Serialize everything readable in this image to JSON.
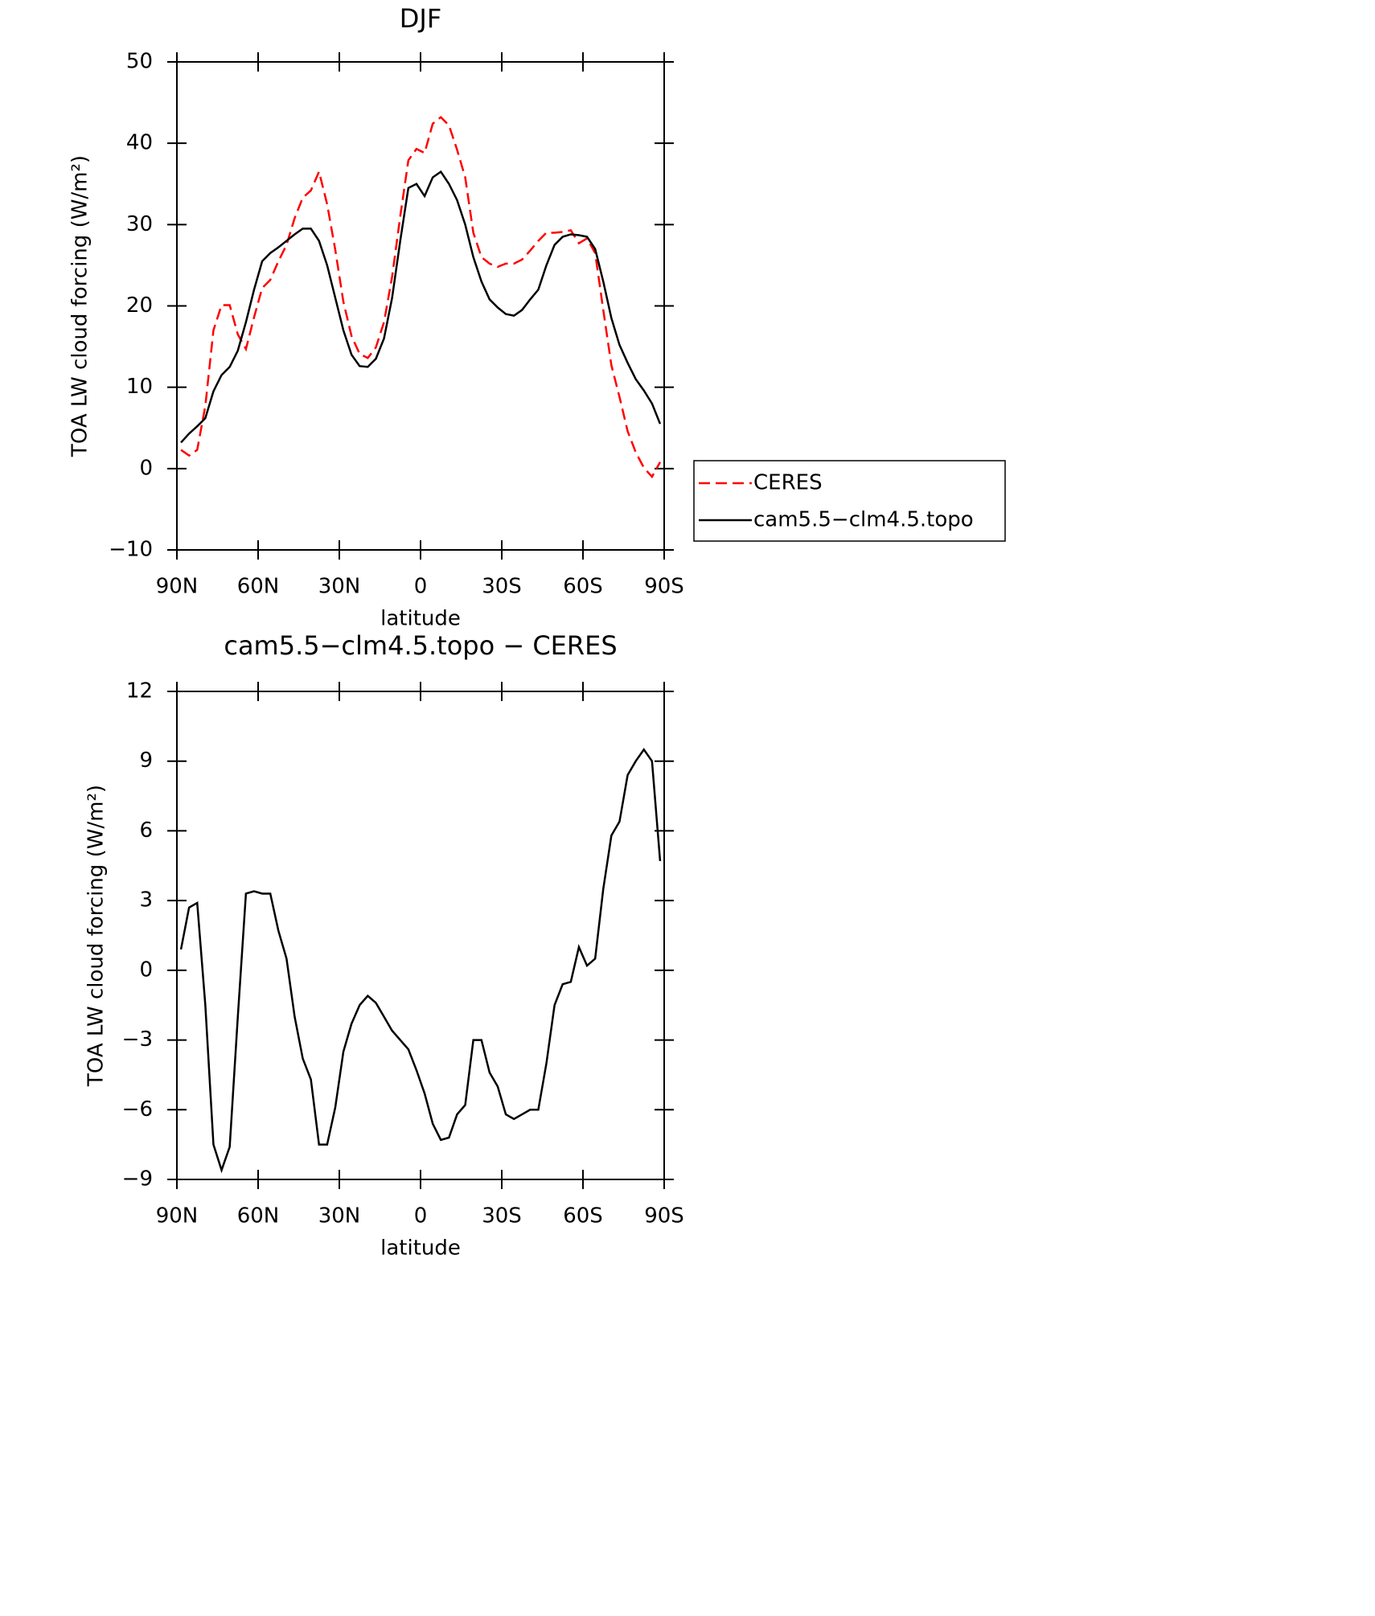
{
  "chart_data": [
    {
      "type": "line",
      "title": "DJF",
      "xlabel": "latitude",
      "ylabel": "TOA LW cloud forcing (W/m²)",
      "x": [
        88.5,
        85.5,
        82.5,
        79.5,
        76.5,
        73.5,
        70.5,
        67.5,
        64.5,
        61.5,
        58.5,
        55.5,
        52.5,
        49.5,
        46.5,
        43.5,
        40.5,
        37.5,
        34.5,
        31.5,
        28.5,
        25.5,
        22.5,
        19.5,
        16.5,
        13.5,
        10.5,
        7.5,
        4.5,
        1.5,
        -1.5,
        -4.5,
        -7.5,
        -10.5,
        -13.5,
        -16.5,
        -19.5,
        -22.5,
        -25.5,
        -28.5,
        -31.5,
        -34.5,
        -37.5,
        -40.5,
        -43.5,
        -46.5,
        -49.5,
        -52.5,
        -55.5,
        -58.5,
        -61.5,
        -64.5,
        -67.5,
        -70.5,
        -73.5,
        -76.5,
        -79.5,
        -82.5,
        -85.5,
        -88.5
      ],
      "series": [
        {
          "name": "CERES",
          "color": "#ff0000",
          "dash": true,
          "values": [
            2.3,
            1.6,
            2.3,
            7.7,
            17,
            20.1,
            20.1,
            16.5,
            14.7,
            18.6,
            22.2,
            23.2,
            25.5,
            27.5,
            30.8,
            33.3,
            34.2,
            36.5,
            32.5,
            26.9,
            20.5,
            16.3,
            14.1,
            13.6,
            14.9,
            18,
            23.6,
            31,
            37.9,
            39.3,
            38.8,
            42.4,
            43.2,
            42.2,
            39.2,
            35.8,
            29,
            26,
            25.2,
            24.8,
            25.2,
            25.2,
            25.7,
            26.8,
            28,
            29,
            29,
            29.1,
            29.3,
            27.7,
            28.3,
            26.5,
            19.5,
            12.7,
            8.8,
            4.6,
            2,
            0.1,
            -1,
            0.8
          ]
        },
        {
          "name": "cam5.5−clm4.5.topo",
          "color": "#000000",
          "dash": false,
          "values": [
            3.2,
            4.3,
            5.2,
            6.2,
            9.5,
            11.5,
            12.5,
            14.5,
            18,
            22,
            25.5,
            26.5,
            27.2,
            28,
            28.8,
            29.5,
            29.5,
            28,
            25,
            21,
            17,
            14,
            12.6,
            12.5,
            13.5,
            16,
            21,
            28,
            34.5,
            35,
            33.5,
            35.8,
            36.5,
            35,
            33,
            30,
            26,
            23,
            20.8,
            19.8,
            19,
            18.8,
            19.5,
            20.8,
            22,
            25,
            27.5,
            28.5,
            28.8,
            28.7,
            28.5,
            27,
            23,
            18.5,
            15.2,
            13,
            11,
            9.6,
            8,
            5.5
          ]
        }
      ],
      "xlim": [
        90,
        -90
      ],
      "xticks": [
        {
          "value": 90,
          "label": "90N"
        },
        {
          "value": 60,
          "label": "60N"
        },
        {
          "value": 30,
          "label": "30N"
        },
        0,
        {
          "value": -30,
          "label": "30S"
        },
        {
          "value": -60,
          "label": "60S"
        },
        {
          "value": -90,
          "label": "90S"
        }
      ],
      "ylim": [
        -10,
        50
      ],
      "yticks": [
        {
          "value": -10,
          "label": "−10"
        },
        0,
        10,
        20,
        30,
        40,
        50
      ],
      "legend": "right-outside"
    },
    {
      "type": "line",
      "title": "cam5.5−clm4.5.topo − CERES",
      "xlabel": "latitude",
      "ylabel": "TOA LW cloud forcing (W/m²)",
      "x": [
        88.5,
        85.5,
        82.5,
        79.5,
        76.5,
        73.5,
        70.5,
        67.5,
        64.5,
        61.5,
        58.5,
        55.5,
        52.5,
        49.5,
        46.5,
        43.5,
        40.5,
        37.5,
        34.5,
        31.5,
        28.5,
        25.5,
        22.5,
        19.5,
        16.5,
        13.5,
        10.5,
        7.5,
        4.5,
        1.5,
        -1.5,
        -4.5,
        -7.5,
        -10.5,
        -13.5,
        -16.5,
        -19.5,
        -22.5,
        -25.5,
        -28.5,
        -31.5,
        -34.5,
        -37.5,
        -40.5,
        -43.5,
        -46.5,
        -49.5,
        -52.5,
        -55.5,
        -58.5,
        -61.5,
        -64.5,
        -67.5,
        -70.5,
        -73.5,
        -76.5,
        -79.5,
        -82.5,
        -85.5,
        -88.5
      ],
      "series": [
        {
          "color": "#000000",
          "dash": false,
          "values": [
            0.9,
            2.7,
            2.9,
            -1.5,
            -7.5,
            -8.6,
            -7.6,
            -2,
            3.3,
            3.4,
            3.3,
            3.3,
            1.7,
            0.5,
            -2,
            -3.8,
            -4.7,
            -7.5,
            -7.5,
            -5.9,
            -3.5,
            -2.3,
            -1.5,
            -1.1,
            -1.4,
            -2,
            -2.6,
            -3,
            -3.4,
            -4.3,
            -5.3,
            -6.6,
            -7.3,
            -7.2,
            -6.2,
            -5.8,
            -3,
            -3,
            -4.4,
            -5,
            -6.2,
            -6.4,
            -6.2,
            -6,
            -6,
            -4,
            -1.5,
            -0.6,
            -0.5,
            1,
            0.2,
            0.5,
            3.5,
            5.8,
            6.4,
            8.4,
            9,
            9.5,
            9,
            4.7
          ]
        }
      ],
      "xlim": [
        90,
        -90
      ],
      "xticks": [
        {
          "value": 90,
          "label": "90N"
        },
        {
          "value": 60,
          "label": "60N"
        },
        {
          "value": 30,
          "label": "30N"
        },
        0,
        {
          "value": -30,
          "label": "30S"
        },
        {
          "value": -60,
          "label": "60S"
        },
        {
          "value": -90,
          "label": "90S"
        }
      ],
      "ylim": [
        -9,
        12
      ],
      "yticks": [
        {
          "value": -9,
          "label": "−9"
        },
        {
          "value": -6,
          "label": "−6"
        },
        {
          "value": -3,
          "label": "−3"
        },
        0,
        3,
        6,
        9,
        12
      ]
    }
  ]
}
